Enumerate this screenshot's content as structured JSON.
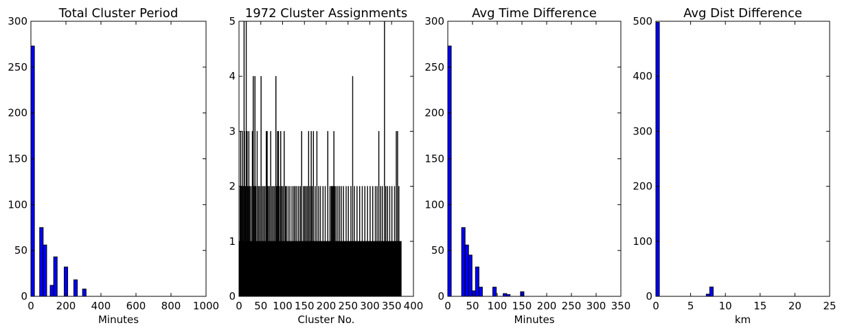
{
  "chart_data": [
    {
      "type": "bar",
      "title": "Total Cluster Period",
      "xlabel": "Minutes",
      "ylabel": "",
      "xlim": [
        0,
        1000
      ],
      "ylim": [
        0,
        300
      ],
      "xticks": [
        "0",
        "200",
        "400",
        "600",
        "800",
        "1000"
      ],
      "yticks": [
        "0",
        "50",
        "100",
        "150",
        "200",
        "250",
        "300"
      ],
      "color": "#0000ff",
      "bar_width": 20,
      "x": [
        0,
        50,
        70,
        110,
        130,
        190,
        245,
        295
      ],
      "values": [
        273,
        75,
        56,
        12,
        43,
        32,
        18,
        8
      ]
    },
    {
      "type": "bar",
      "title": "1972 Cluster Assignments",
      "xlabel": "Cluster No.",
      "ylabel": "",
      "xlim": [
        0,
        400
      ],
      "ylim": [
        0,
        5
      ],
      "xticks": [
        "0",
        "50",
        "100",
        "150",
        "200",
        "250",
        "300",
        "350",
        "400"
      ],
      "yticks": [
        "0",
        "1",
        "2",
        "3",
        "4",
        "5"
      ],
      "color": "#000000",
      "bar_width": 1,
      "x_range": [
        0,
        372
      ],
      "baseline": 1,
      "overrides": {
        "2": 2,
        "3": 3,
        "5": 2,
        "7": 3,
        "9": 2,
        "11": 5,
        "12": 3,
        "14": 2,
        "16": 5,
        "18": 3,
        "20": 2,
        "22": 3,
        "24": 2,
        "27": 2,
        "30": 3,
        "32": 4,
        "34": 2,
        "36": 4,
        "38": 2,
        "41": 3,
        "44": 2,
        "47": 2,
        "50": 4,
        "53": 2,
        "56": 2,
        "59": 2,
        "62": 3,
        "64": 3,
        "66": 2,
        "69": 2,
        "72": 3,
        "75": 2,
        "78": 2,
        "81": 2,
        "84": 4,
        "86": 2,
        "88": 3,
        "90": 3,
        "92": 2,
        "95": 3,
        "97": 2,
        "100": 2,
        "103": 3,
        "106": 2,
        "108": 2,
        "112": 2,
        "116": 2,
        "121": 2,
        "125": 2,
        "128": 2,
        "132": 2,
        "136": 2,
        "140": 2,
        "143": 3,
        "147": 2,
        "150": 2,
        "153": 2,
        "156": 2,
        "159": 3,
        "162": 2,
        "165": 3,
        "167": 2,
        "170": 3,
        "174": 2,
        "178": 3,
        "182": 2,
        "186": 2,
        "192": 2,
        "197": 2,
        "203": 3,
        "208": 2,
        "211": 2,
        "213": 2,
        "215": 2,
        "217": 3,
        "219": 2,
        "222": 2,
        "226": 2,
        "230": 2,
        "234": 2,
        "239": 2,
        "245": 2,
        "250": 2,
        "256": 2,
        "260": 4,
        "264": 2,
        "270": 2,
        "276": 2,
        "282": 2,
        "288": 2,
        "294": 2,
        "300": 2,
        "306": 2,
        "312": 2,
        "316": 2,
        "320": 3,
        "324": 2,
        "328": 2,
        "333": 5,
        "336": 2,
        "340": 2,
        "345": 2,
        "350": 2,
        "356": 2,
        "360": 3,
        "363": 3,
        "366": 2
      }
    },
    {
      "type": "bar",
      "title": "Avg Time Difference",
      "xlabel": "Minutes",
      "ylabel": "",
      "xlim": [
        0,
        350
      ],
      "ylim": [
        0,
        300
      ],
      "xticks": [
        "0",
        "50",
        "100",
        "150",
        "200",
        "250",
        "300",
        "350"
      ],
      "yticks": [
        "0",
        "50",
        "100",
        "150",
        "200",
        "250",
        "300"
      ],
      "color": "#0000ff",
      "bar_width": 7,
      "x": [
        0,
        28,
        35,
        42,
        49,
        56,
        63,
        91,
        112,
        119,
        147
      ],
      "values": [
        273,
        75,
        56,
        45,
        6,
        32,
        10,
        10,
        3,
        2,
        5
      ]
    },
    {
      "type": "bar",
      "title": "Avg Dist Difference",
      "xlabel": "km",
      "ylabel": "",
      "xlim": [
        0,
        25
      ],
      "ylim": [
        0,
        500
      ],
      "xticks": [
        "0",
        "5",
        "10",
        "15",
        "20",
        "25"
      ],
      "yticks": [
        "0",
        "100",
        "200",
        "300",
        "400",
        "500"
      ],
      "color": "#0000ff",
      "bar_width": 0.5,
      "x": [
        0,
        7.25,
        7.75
      ],
      "values": [
        498,
        4,
        17
      ]
    }
  ]
}
